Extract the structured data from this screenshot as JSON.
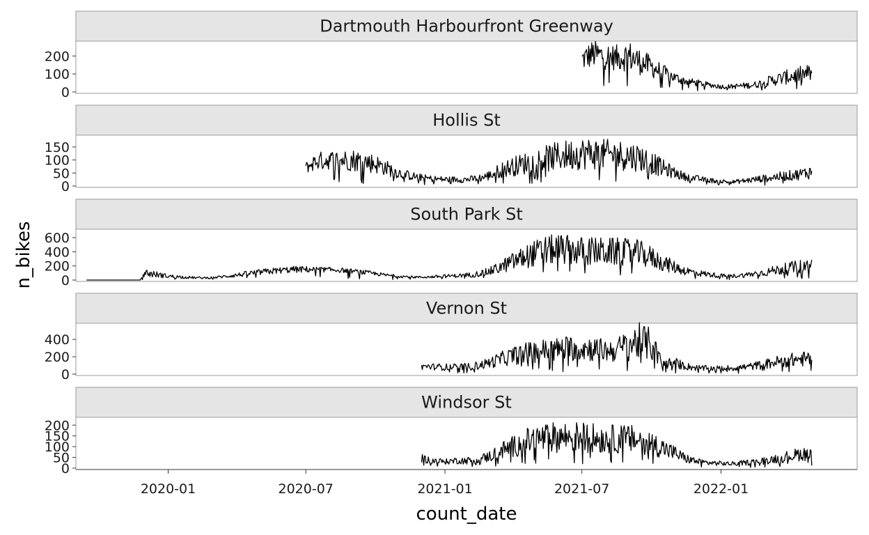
{
  "chart_data": {
    "type": "line",
    "xlabel": "count_date",
    "ylabel": "n_bikes",
    "x_ticks": [
      "2020-01",
      "2020-07",
      "2021-01",
      "2021-07",
      "2022-01"
    ],
    "xlim": [
      "2019-09-01",
      "2022-06-30"
    ],
    "grid": false,
    "facets": [
      {
        "name": "Dartmouth Harbourfront Greenway",
        "y_ticks": [
          0,
          100,
          200
        ],
        "ylim": [
          0,
          275
        ],
        "series": {
          "x": [
            "2021-07-01",
            "2021-07-15",
            "2021-08-01",
            "2021-08-15",
            "2021-09-01",
            "2021-09-15",
            "2021-10-01",
            "2021-10-15",
            "2021-11-01",
            "2021-11-15",
            "2021-12-01",
            "2021-12-15",
            "2022-01-01",
            "2022-01-15",
            "2022-02-01",
            "2022-02-15",
            "2022-03-01",
            "2022-03-15",
            "2022-04-01",
            "2022-04-15",
            "2022-05-01"
          ],
          "y": [
            180,
            210,
            200,
            190,
            200,
            170,
            140,
            110,
            80,
            60,
            50,
            40,
            30,
            30,
            35,
            40,
            55,
            70,
            85,
            95,
            105
          ],
          "amp": [
            0.3,
            0.3,
            0.3,
            0.3,
            0.35,
            0.35,
            0.35,
            0.35,
            0.3,
            0.3,
            0.3,
            0.3,
            0.35,
            0.35,
            0.4,
            0.4,
            0.4,
            0.4,
            0.4,
            0.4,
            0.4
          ]
        }
      },
      {
        "name": "Hollis St",
        "y_ticks": [
          0,
          50,
          100,
          150
        ],
        "ylim": [
          0,
          190
        ],
        "series": {
          "x": [
            "2020-07-01",
            "2020-07-15",
            "2020-08-01",
            "2020-08-15",
            "2020-09-01",
            "2020-09-15",
            "2020-10-01",
            "2020-10-15",
            "2020-11-01",
            "2020-11-15",
            "2020-12-01",
            "2020-12-15",
            "2021-01-01",
            "2021-01-15",
            "2021-02-01",
            "2021-02-15",
            "2021-03-01",
            "2021-03-15",
            "2021-04-01",
            "2021-04-15",
            "2021-05-01",
            "2021-05-15",
            "2021-06-01",
            "2021-06-15",
            "2021-07-01",
            "2021-07-15",
            "2021-08-01",
            "2021-08-15",
            "2021-09-01",
            "2021-09-15",
            "2021-10-01",
            "2021-10-15",
            "2021-11-01",
            "2021-11-15",
            "2021-12-01",
            "2021-12-15",
            "2022-01-01",
            "2022-01-15",
            "2022-02-01",
            "2022-02-15",
            "2022-03-01",
            "2022-03-15",
            "2022-04-01",
            "2022-04-15",
            "2022-05-01"
          ],
          "y": [
            70,
            95,
            100,
            100,
            100,
            95,
            85,
            70,
            50,
            40,
            32,
            28,
            25,
            25,
            25,
            30,
            40,
            60,
            75,
            85,
            95,
            105,
            115,
            120,
            125,
            125,
            120,
            120,
            115,
            110,
            90,
            70,
            50,
            35,
            28,
            22,
            18,
            15,
            20,
            25,
            30,
            35,
            40,
            45,
            55
          ],
          "amp": [
            0.25,
            0.3,
            0.3,
            0.3,
            0.35,
            0.35,
            0.35,
            0.35,
            0.35,
            0.35,
            0.35,
            0.35,
            0.4,
            0.4,
            0.4,
            0.4,
            0.4,
            0.4,
            0.4,
            0.4,
            0.4,
            0.4,
            0.4,
            0.4,
            0.4,
            0.4,
            0.4,
            0.4,
            0.4,
            0.4,
            0.4,
            0.4,
            0.35,
            0.35,
            0.35,
            0.35,
            0.4,
            0.4,
            0.4,
            0.4,
            0.4,
            0.4,
            0.4,
            0.4,
            0.4
          ]
        }
      },
      {
        "name": "South Park St",
        "y_ticks": [
          0,
          200,
          400,
          600
        ],
        "ylim": [
          0,
          700
        ],
        "series": {
          "x": [
            "2019-09-15",
            "2019-10-15",
            "2019-11-15",
            "2019-11-25",
            "2019-12-01",
            "2019-12-15",
            "2020-01-01",
            "2020-01-15",
            "2020-02-01",
            "2020-02-15",
            "2020-03-01",
            "2020-03-15",
            "2020-04-01",
            "2020-04-15",
            "2020-05-01",
            "2020-05-15",
            "2020-06-01",
            "2020-06-15",
            "2020-07-01",
            "2020-07-15",
            "2020-08-01",
            "2020-08-15",
            "2020-09-01",
            "2020-09-15",
            "2020-10-01",
            "2020-10-15",
            "2020-11-01",
            "2020-11-15",
            "2020-12-01",
            "2020-12-15",
            "2021-01-01",
            "2021-01-15",
            "2021-02-01",
            "2021-02-15",
            "2021-03-01",
            "2021-03-15",
            "2021-04-01",
            "2021-04-15",
            "2021-05-01",
            "2021-05-15",
            "2021-06-01",
            "2021-06-15",
            "2021-07-01",
            "2021-07-15",
            "2021-08-01",
            "2021-08-15",
            "2021-09-01",
            "2021-09-15",
            "2021-10-01",
            "2021-10-15",
            "2021-11-01",
            "2021-11-15",
            "2021-12-01",
            "2021-12-15",
            "2022-01-01",
            "2022-01-15",
            "2022-02-01",
            "2022-02-15",
            "2022-03-01",
            "2022-03-15",
            "2022-04-01",
            "2022-04-15",
            "2022-05-01"
          ],
          "y": [
            0,
            0,
            0,
            0,
            100,
            80,
            55,
            45,
            35,
            30,
            35,
            50,
            70,
            90,
            110,
            125,
            140,
            150,
            150,
            150,
            145,
            140,
            125,
            110,
            90,
            70,
            55,
            45,
            40,
            45,
            55,
            60,
            70,
            90,
            120,
            180,
            260,
            320,
            380,
            420,
            440,
            420,
            410,
            410,
            400,
            400,
            390,
            380,
            320,
            250,
            180,
            130,
            100,
            80,
            60,
            55,
            70,
            90,
            110,
            140,
            170,
            190,
            210
          ],
          "amp": [
            0.0,
            0.0,
            0.0,
            0.0,
            0.5,
            0.45,
            0.4,
            0.4,
            0.4,
            0.4,
            0.35,
            0.35,
            0.35,
            0.35,
            0.3,
            0.3,
            0.25,
            0.25,
            0.25,
            0.2,
            0.2,
            0.2,
            0.2,
            0.25,
            0.25,
            0.25,
            0.3,
            0.3,
            0.3,
            0.35,
            0.35,
            0.35,
            0.4,
            0.4,
            0.4,
            0.4,
            0.4,
            0.4,
            0.4,
            0.4,
            0.4,
            0.4,
            0.4,
            0.4,
            0.4,
            0.4,
            0.4,
            0.4,
            0.4,
            0.4,
            0.4,
            0.4,
            0.4,
            0.4,
            0.4,
            0.4,
            0.4,
            0.4,
            0.4,
            0.4,
            0.4,
            0.4,
            0.4
          ]
        }
      },
      {
        "name": "Vernon St",
        "y_ticks": [
          0,
          200,
          400
        ],
        "ylim": [
          0,
          570
        ],
        "series": {
          "x": [
            "2020-12-01",
            "2020-12-15",
            "2021-01-01",
            "2021-01-15",
            "2021-02-01",
            "2021-02-15",
            "2021-03-01",
            "2021-03-15",
            "2021-04-01",
            "2021-04-15",
            "2021-05-01",
            "2021-05-15",
            "2021-06-01",
            "2021-06-15",
            "2021-07-01",
            "2021-07-15",
            "2021-08-01",
            "2021-08-15",
            "2021-09-01",
            "2021-09-15",
            "2021-10-01",
            "2021-10-15",
            "2021-11-01",
            "2021-11-15",
            "2021-12-01",
            "2021-12-15",
            "2022-01-01",
            "2022-01-15",
            "2022-02-01",
            "2022-02-15",
            "2022-03-01",
            "2022-03-15",
            "2022-04-01",
            "2022-04-15",
            "2022-05-01"
          ],
          "y": [
            90,
            85,
            80,
            80,
            85,
            100,
            130,
            170,
            210,
            240,
            260,
            275,
            285,
            300,
            300,
            290,
            270,
            275,
            340,
            380,
            340,
            120,
            130,
            90,
            70,
            65,
            65,
            70,
            80,
            95,
            115,
            140,
            160,
            170,
            180
          ],
          "amp": [
            0.35,
            0.35,
            0.4,
            0.4,
            0.4,
            0.4,
            0.4,
            0.4,
            0.4,
            0.4,
            0.4,
            0.4,
            0.4,
            0.4,
            0.4,
            0.4,
            0.4,
            0.4,
            0.45,
            0.45,
            0.45,
            0.45,
            0.4,
            0.4,
            0.4,
            0.4,
            0.4,
            0.4,
            0.4,
            0.4,
            0.4,
            0.4,
            0.4,
            0.4,
            0.4
          ]
        }
      },
      {
        "name": "Windsor St",
        "y_ticks": [
          0,
          50,
          100,
          150,
          200
        ],
        "ylim": [
          0,
          230
        ],
        "series": {
          "x": [
            "2020-12-01",
            "2020-12-15",
            "2021-01-01",
            "2021-01-15",
            "2021-02-01",
            "2021-02-15",
            "2021-03-01",
            "2021-03-15",
            "2021-04-01",
            "2021-04-15",
            "2021-05-01",
            "2021-05-15",
            "2021-06-01",
            "2021-06-15",
            "2021-07-01",
            "2021-07-15",
            "2021-08-01",
            "2021-08-15",
            "2021-09-01",
            "2021-09-15",
            "2021-10-01",
            "2021-10-15",
            "2021-11-01",
            "2021-11-15",
            "2021-12-01",
            "2021-12-15",
            "2022-01-01",
            "2022-01-15",
            "2022-02-01",
            "2022-02-15",
            "2022-03-01",
            "2022-03-15",
            "2022-04-01",
            "2022-04-15",
            "2022-05-01"
          ],
          "y": [
            45,
            35,
            30,
            35,
            35,
            40,
            55,
            80,
            100,
            120,
            135,
            140,
            145,
            145,
            145,
            140,
            135,
            135,
            135,
            130,
            115,
            95,
            70,
            45,
            30,
            25,
            22,
            20,
            25,
            30,
            35,
            45,
            55,
            65,
            70
          ],
          "amp": [
            0.35,
            0.35,
            0.35,
            0.35,
            0.4,
            0.4,
            0.4,
            0.4,
            0.4,
            0.4,
            0.4,
            0.4,
            0.4,
            0.4,
            0.4,
            0.4,
            0.4,
            0.4,
            0.4,
            0.4,
            0.4,
            0.4,
            0.4,
            0.4,
            0.4,
            0.4,
            0.4,
            0.4,
            0.4,
            0.4,
            0.4,
            0.4,
            0.4,
            0.4,
            0.4
          ]
        }
      }
    ]
  }
}
